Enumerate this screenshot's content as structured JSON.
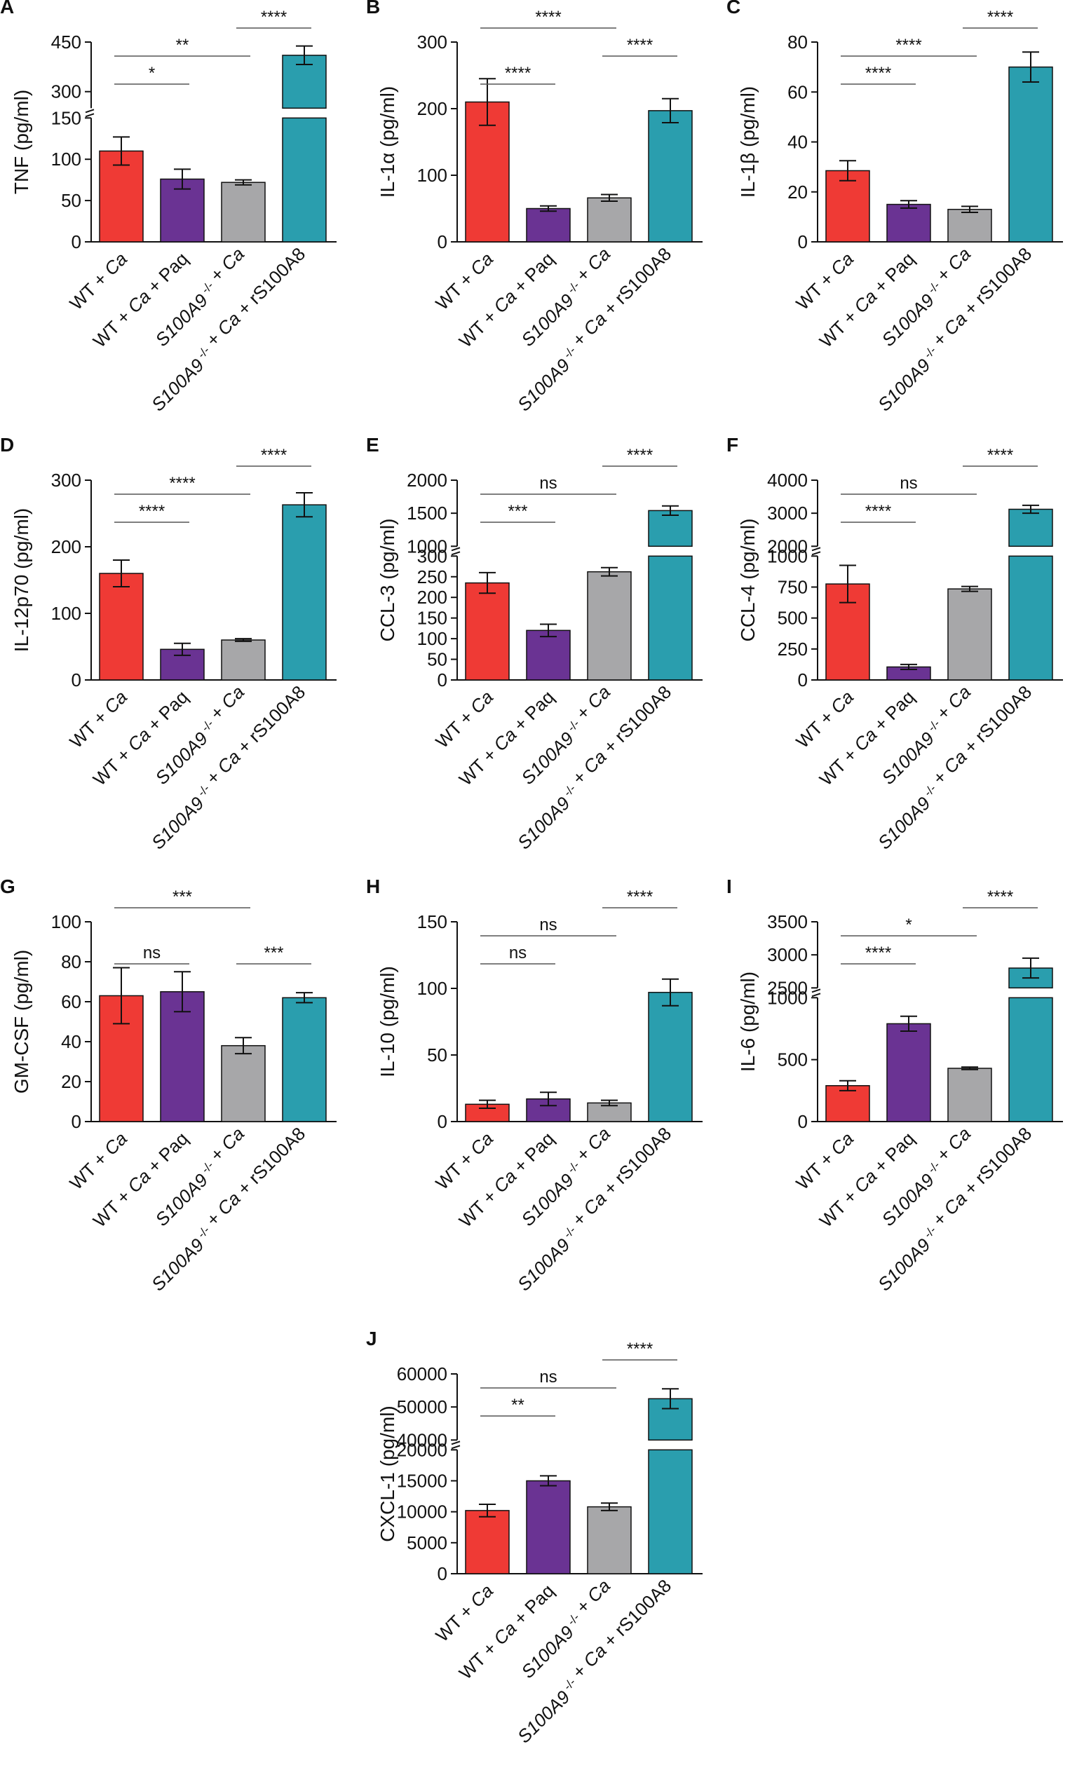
{
  "figure": {
    "categories": [
      {
        "main": "WT + ",
        "ital": "Ca",
        "tail": "",
        "sup": ""
      },
      {
        "main": "WT + ",
        "ital": "Ca",
        "tail": " + Paq",
        "sup": ""
      },
      {
        "ital2": "S100A9",
        "sup": " -/-",
        "main": " + ",
        "ital": "Ca",
        "tail": ""
      },
      {
        "ital2": "S100A9",
        "sup": " -/-",
        "main": " + ",
        "ital": "Ca",
        "tail": " + rS100A8"
      }
    ],
    "colors": [
      "#ef3a35",
      "#6a3393",
      "#a7a7a9",
      "#2a9eae"
    ]
  },
  "chart_data": [
    {
      "id": "A",
      "type": "bar",
      "ylabel": "TNF (pg/ml)",
      "values": [
        110,
        76,
        72,
        410
      ],
      "errors": [
        17,
        12,
        3,
        28
      ],
      "ylim": [
        0,
        450
      ],
      "break": {
        "lower_max": 150,
        "upper_min": 250,
        "upper_ticks_values": [
          300,
          450
        ]
      },
      "ticks": [
        0,
        50,
        100,
        150,
        300,
        450
      ],
      "tick_labels": [
        "0",
        "50",
        "100",
        "150",
        "300",
        "450"
      ],
      "comparisons": [
        {
          "from": 0,
          "to": 1,
          "label": "*",
          "level": 1
        },
        {
          "from": 0,
          "to": 2,
          "label": "**",
          "level": 2
        },
        {
          "from": 2,
          "to": 3,
          "label": "****",
          "level": 3
        }
      ]
    },
    {
      "id": "B",
      "type": "bar",
      "ylabel": "IL-1α (pg/ml)",
      "values": [
        210,
        50,
        66,
        197
      ],
      "errors": [
        35,
        4,
        5,
        18
      ],
      "ylim": [
        0,
        300
      ],
      "ticks": [
        0,
        100,
        200,
        300
      ],
      "tick_labels": [
        "0",
        "100",
        "200",
        "300"
      ],
      "comparisons": [
        {
          "from": 0,
          "to": 1,
          "label": "****",
          "level": 1
        },
        {
          "from": 0,
          "to": 2,
          "label": "****",
          "level": 3
        },
        {
          "from": 2,
          "to": 3,
          "label": "****",
          "level": 2
        }
      ]
    },
    {
      "id": "C",
      "type": "bar",
      "ylabel": "IL-1β (pg/ml)",
      "values": [
        28.5,
        15,
        13,
        70
      ],
      "errors": [
        4,
        1.5,
        1.2,
        6
      ],
      "ylim": [
        0,
        80
      ],
      "ticks": [
        0,
        20,
        40,
        60,
        80
      ],
      "tick_labels": [
        "0",
        "20",
        "40",
        "60",
        "80"
      ],
      "comparisons": [
        {
          "from": 0,
          "to": 1,
          "label": "****",
          "level": 1
        },
        {
          "from": 0,
          "to": 2,
          "label": "****",
          "level": 2
        },
        {
          "from": 2,
          "to": 3,
          "label": "****",
          "level": 3
        }
      ]
    },
    {
      "id": "D",
      "type": "bar",
      "ylabel": "IL-12p70 (pg/ml)",
      "values": [
        160,
        46,
        60,
        263
      ],
      "errors": [
        20,
        9,
        2,
        18
      ],
      "ylim": [
        0,
        300
      ],
      "ticks": [
        0,
        100,
        200,
        300
      ],
      "tick_labels": [
        "0",
        "100",
        "200",
        "300"
      ],
      "comparisons": [
        {
          "from": 0,
          "to": 1,
          "label": "****",
          "level": 1
        },
        {
          "from": 0,
          "to": 2,
          "label": "****",
          "level": 2
        },
        {
          "from": 2,
          "to": 3,
          "label": "****",
          "level": 3
        }
      ]
    },
    {
      "id": "E",
      "type": "bar",
      "ylabel": "CCL-3 (pg/ml)",
      "values": [
        235,
        120,
        262,
        1540
      ],
      "errors": [
        25,
        15,
        10,
        70
      ],
      "ylim": [
        0,
        2000
      ],
      "break": {
        "lower_max": 300,
        "upper_min": 1000
      },
      "ticks": [
        0,
        50,
        100,
        150,
        200,
        250,
        300,
        1000,
        1500,
        2000
      ],
      "tick_labels": [
        "0",
        "50",
        "100",
        "150",
        "200",
        "250",
        "300",
        "1000",
        "1500",
        "2000"
      ],
      "comparisons": [
        {
          "from": 0,
          "to": 1,
          "label": "***",
          "level": 1
        },
        {
          "from": 0,
          "to": 2,
          "label": "ns",
          "level": 2
        },
        {
          "from": 2,
          "to": 3,
          "label": "****",
          "level": 3
        }
      ]
    },
    {
      "id": "F",
      "type": "bar",
      "ylabel": "CCL-4 (pg/ml)",
      "values": [
        775,
        105,
        735,
        3120
      ],
      "errors": [
        150,
        20,
        20,
        120
      ],
      "ylim": [
        0,
        4000
      ],
      "break": {
        "lower_max": 1000,
        "upper_min": 2000
      },
      "ticks": [
        0,
        250,
        500,
        750,
        1000,
        2000,
        3000,
        4000
      ],
      "tick_labels": [
        "0",
        "250",
        "500",
        "750",
        "1000",
        "2000",
        "3000",
        "4000"
      ],
      "comparisons": [
        {
          "from": 0,
          "to": 1,
          "label": "****",
          "level": 1
        },
        {
          "from": 0,
          "to": 2,
          "label": "ns",
          "level": 2
        },
        {
          "from": 2,
          "to": 3,
          "label": "****",
          "level": 3
        }
      ]
    },
    {
      "id": "G",
      "type": "bar",
      "ylabel": "GM-CSF (pg/ml)",
      "values": [
        63,
        65,
        38,
        62
      ],
      "errors": [
        14,
        10,
        4,
        2.5
      ],
      "ylim": [
        0,
        100
      ],
      "ticks": [
        0,
        20,
        40,
        60,
        80,
        100
      ],
      "tick_labels": [
        "0",
        "20",
        "40",
        "60",
        "80",
        "100"
      ],
      "comparisons": [
        {
          "from": 0,
          "to": 1,
          "label": "ns",
          "level": 1
        },
        {
          "from": 0,
          "to": 2,
          "label": "***",
          "level": 3
        },
        {
          "from": 2,
          "to": 3,
          "label": "***",
          "level": 1
        }
      ]
    },
    {
      "id": "H",
      "type": "bar",
      "ylabel": "IL-10 (pg/ml)",
      "values": [
        13,
        17,
        14,
        97
      ],
      "errors": [
        3,
        5,
        2,
        10
      ],
      "ylim": [
        0,
        150
      ],
      "ticks": [
        0,
        50,
        100,
        150
      ],
      "tick_labels": [
        "0",
        "50",
        "100",
        "150"
      ],
      "comparisons": [
        {
          "from": 0,
          "to": 1,
          "label": "ns",
          "level": 1
        },
        {
          "from": 0,
          "to": 2,
          "label": "ns",
          "level": 2
        },
        {
          "from": 2,
          "to": 3,
          "label": "****",
          "level": 3
        }
      ]
    },
    {
      "id": "I",
      "type": "bar",
      "ylabel": "IL-6 (pg/ml)",
      "values": [
        290,
        790,
        430,
        2800
      ],
      "errors": [
        40,
        60,
        10,
        150
      ],
      "ylim": [
        0,
        3500
      ],
      "break": {
        "lower_max": 1000,
        "upper_min": 2500
      },
      "ticks": [
        0,
        500,
        1000,
        2500,
        3000,
        3500
      ],
      "tick_labels": [
        "0",
        "500",
        "1000",
        "2500",
        "3000",
        "3500"
      ],
      "comparisons": [
        {
          "from": 0,
          "to": 1,
          "label": "****",
          "level": 1
        },
        {
          "from": 0,
          "to": 2,
          "label": "*",
          "level": 2
        },
        {
          "from": 2,
          "to": 3,
          "label": "****",
          "level": 3
        }
      ]
    },
    {
      "id": "J",
      "type": "bar",
      "ylabel": "CXCL-1 (pg/ml)",
      "values": [
        10200,
        15000,
        10800,
        52500
      ],
      "errors": [
        1000,
        800,
        600,
        3000
      ],
      "ylim": [
        0,
        60000
      ],
      "break": {
        "lower_max": 20000,
        "upper_min": 40000
      },
      "ticks": [
        0,
        5000,
        10000,
        15000,
        20000,
        40000,
        50000,
        60000
      ],
      "tick_labels": [
        "0",
        "5000",
        "10000",
        "15000",
        "20000",
        "40000",
        "50000",
        "60000"
      ],
      "comparisons": [
        {
          "from": 0,
          "to": 1,
          "label": "**",
          "level": 1
        },
        {
          "from": 0,
          "to": 2,
          "label": "ns",
          "level": 2
        },
        {
          "from": 2,
          "to": 3,
          "label": "****",
          "level": 3
        }
      ]
    }
  ]
}
